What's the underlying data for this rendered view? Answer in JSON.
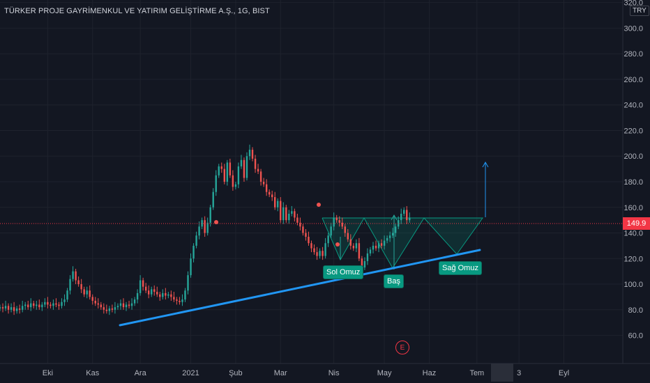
{
  "header": {
    "title": "TÜRKER PROJE GAYRİMENKUL VE YATIRIM GELİŞTİRME A.Ş., 1G, BIST",
    "currency": "TRY"
  },
  "last_price_label": "149.9",
  "event_marker": "E",
  "annotations": {
    "left_shoulder": "Sol Omuz",
    "head": "Baş",
    "right_shoulder": "Sağ Omuz"
  },
  "colors": {
    "background": "#131722",
    "up": "#26a69a",
    "down": "#ef5350",
    "trendline": "#2196f3",
    "pattern_fill": "#089981",
    "price_line": "#f23645"
  },
  "chart_data": {
    "type": "candlestick",
    "title": "TÜRKER PROJE GAYRİMENKUL VE YATIRIM GELİŞTİRME A.Ş., 1G, BIST",
    "y_ticks": [
      60,
      80,
      100,
      120,
      140,
      160,
      180,
      200,
      220,
      240,
      260,
      280,
      300,
      320
    ],
    "y_range": [
      38,
      322
    ],
    "x_ticks": [
      "Eki",
      "Kas",
      "Ara",
      "2021",
      "Şub",
      "Mar",
      "Nis",
      "May",
      "Haz",
      "Tem",
      "3",
      "Eyl"
    ],
    "x_index_range": [
      0,
      222
    ],
    "last_price": 149.9,
    "series_closes": [
      82,
      81,
      83,
      80,
      82,
      79,
      81,
      80,
      83,
      84,
      82,
      85,
      83,
      84,
      82,
      84,
      86,
      84,
      83,
      85,
      84,
      83,
      86,
      88,
      95,
      104,
      110,
      103,
      100,
      96,
      92,
      95,
      90,
      87,
      85,
      84,
      82,
      80,
      79,
      81,
      80,
      82,
      83,
      85,
      82,
      84,
      83,
      85,
      88,
      93,
      103,
      98,
      95,
      92,
      96,
      94,
      92,
      90,
      93,
      91,
      92,
      90,
      88,
      87,
      86,
      88,
      95,
      107,
      120,
      130,
      138,
      145,
      150,
      140,
      148,
      160,
      172,
      185,
      192,
      190,
      180,
      195,
      185,
      176,
      178,
      192,
      197,
      183,
      200,
      205,
      198,
      190,
      188,
      180,
      178,
      172,
      170,
      168,
      160,
      165,
      150,
      160,
      150,
      155,
      157,
      152,
      148,
      145,
      140,
      137,
      132,
      128,
      125,
      122,
      126,
      122,
      132,
      138,
      145,
      152,
      150,
      148,
      145,
      140,
      135,
      130,
      128,
      132,
      120,
      113,
      118,
      124,
      127,
      130,
      128,
      132,
      130,
      134,
      136,
      138,
      140,
      145,
      150,
      155,
      158,
      150,
      152
    ],
    "annotations": [
      "Sol Omuz",
      "Baş",
      "Sağ Omuz"
    ]
  }
}
